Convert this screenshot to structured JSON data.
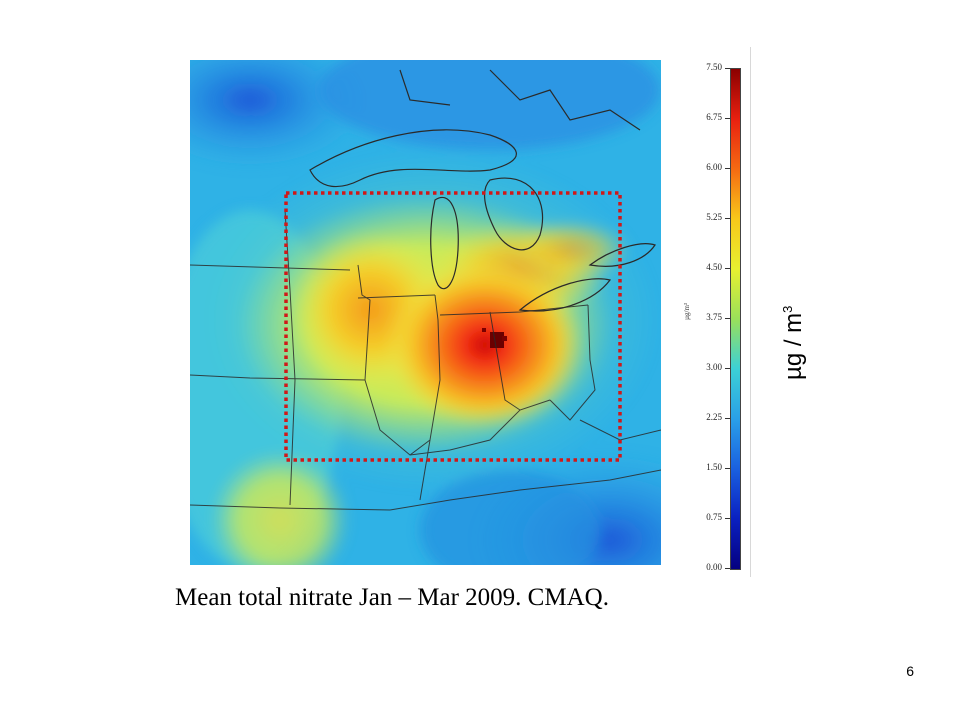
{
  "figure": {
    "caption": "Mean total nitrate Jan – Mar 2009.  CMAQ.",
    "unit_label": "µg / m",
    "unit_label_superscript": "3",
    "colorbar_unit_small": "µg/m³",
    "slide_number": "6"
  },
  "colorbar": {
    "ticks": [
      "7.50",
      "6.75",
      "6.00",
      "5.25",
      "4.50",
      "3.75",
      "3.00",
      "2.25",
      "1.50",
      "0.75",
      "0.00"
    ],
    "min": 0.0,
    "max": 7.5,
    "colors": [
      "#8b0000",
      "#e82010",
      "#f56a12",
      "#f8c81a",
      "#e8f030",
      "#9ae05a",
      "#3cd0d6",
      "#2aa0e8",
      "#1a60e0",
      "#0a20c0",
      "#050080"
    ]
  },
  "map": {
    "region": "Midwest United States / Great Lakes",
    "highlight_box": {
      "color": "#d01818",
      "style": "dotted"
    },
    "hotspot_value": 7.5
  }
}
